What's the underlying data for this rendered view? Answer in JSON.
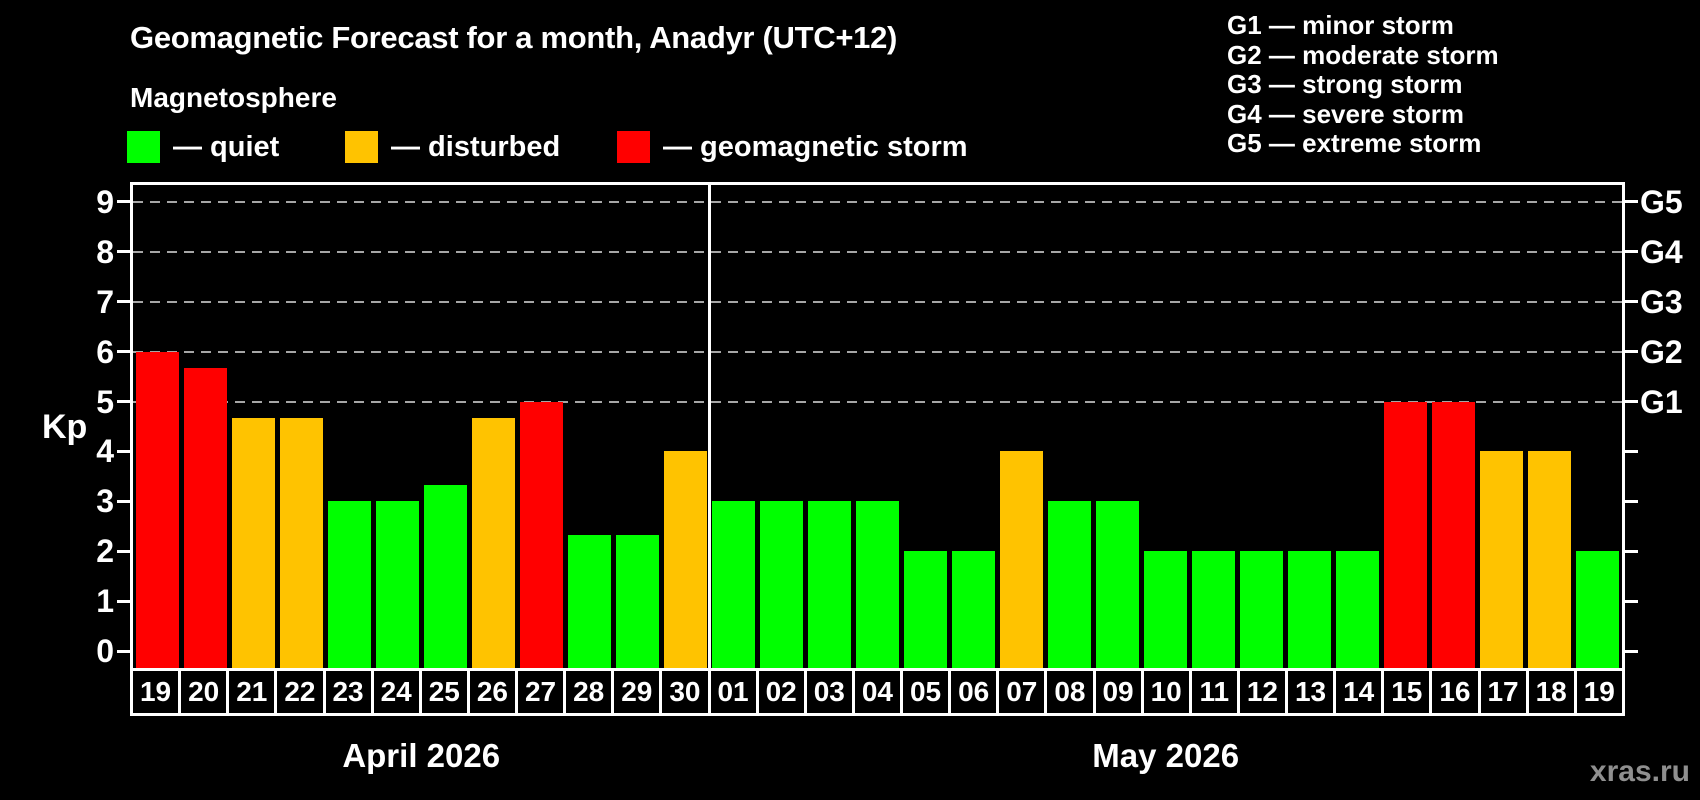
{
  "header": {
    "title": "Geomagnetic Forecast for a month, Anadyr (UTC+12)",
    "subtitle": "Magnetosphere"
  },
  "legend": {
    "items": [
      {
        "key": "quiet",
        "label": "— quiet",
        "color": "#00ff00"
      },
      {
        "key": "disturbed",
        "label": "— disturbed",
        "color": "#ffc300"
      },
      {
        "key": "storm",
        "label": "— geomagnetic storm",
        "color": "#ff0000"
      }
    ]
  },
  "g_legend": {
    "lines": [
      "G1 — minor storm",
      "G2 — moderate storm",
      "G3 — strong storm",
      "G4 — severe storm",
      "G5 — extreme storm"
    ]
  },
  "watermark": "xras.ru",
  "colors": {
    "background": "#000000",
    "axis": "#ffffff",
    "grid": "#a6a6a6",
    "text": "#ffffff",
    "watermark": "#8f8f8f"
  },
  "chart_data": {
    "type": "bar",
    "title": "Geomagnetic Forecast for a month, Anadyr (UTC+12)",
    "ylabel": "Kp",
    "ylim": [
      0,
      9
    ],
    "grid": "horizontal dashed lines at Kp 5,6,7,8,9 (G1–G5 storm levels)",
    "legend_position": "top-left",
    "left_tick_labels": [
      "0",
      "1",
      "2",
      "3",
      "4",
      "5",
      "6",
      "7",
      "8",
      "9"
    ],
    "right_axis_labels": [
      {
        "label": "G1",
        "kp": 5
      },
      {
        "label": "G2",
        "kp": 6
      },
      {
        "label": "G3",
        "kp": 7
      },
      {
        "label": "G4",
        "kp": 8
      },
      {
        "label": "G5",
        "kp": 9
      }
    ],
    "months": [
      {
        "label": "April 2026",
        "days": 12
      },
      {
        "label": "May 2026",
        "days": 19
      }
    ],
    "categories": [
      "19",
      "20",
      "21",
      "22",
      "23",
      "24",
      "25",
      "26",
      "27",
      "28",
      "29",
      "30",
      "01",
      "02",
      "03",
      "04",
      "05",
      "06",
      "07",
      "08",
      "09",
      "10",
      "11",
      "12",
      "13",
      "14",
      "15",
      "16",
      "17",
      "18",
      "19"
    ],
    "values": [
      6,
      5.67,
      4.67,
      4.67,
      3,
      3,
      3.33,
      4.67,
      5,
      2.33,
      2.33,
      4,
      3,
      3,
      3,
      3,
      2,
      2,
      4,
      3,
      3,
      2,
      2,
      2,
      2,
      2,
      5,
      5,
      4,
      4,
      2
    ],
    "statuses": [
      "storm",
      "storm",
      "disturbed",
      "disturbed",
      "quiet",
      "quiet",
      "quiet",
      "disturbed",
      "storm",
      "quiet",
      "quiet",
      "disturbed",
      "quiet",
      "quiet",
      "quiet",
      "quiet",
      "quiet",
      "quiet",
      "disturbed",
      "quiet",
      "quiet",
      "quiet",
      "quiet",
      "quiet",
      "quiet",
      "quiet",
      "storm",
      "storm",
      "disturbed",
      "disturbed",
      "quiet"
    ]
  }
}
